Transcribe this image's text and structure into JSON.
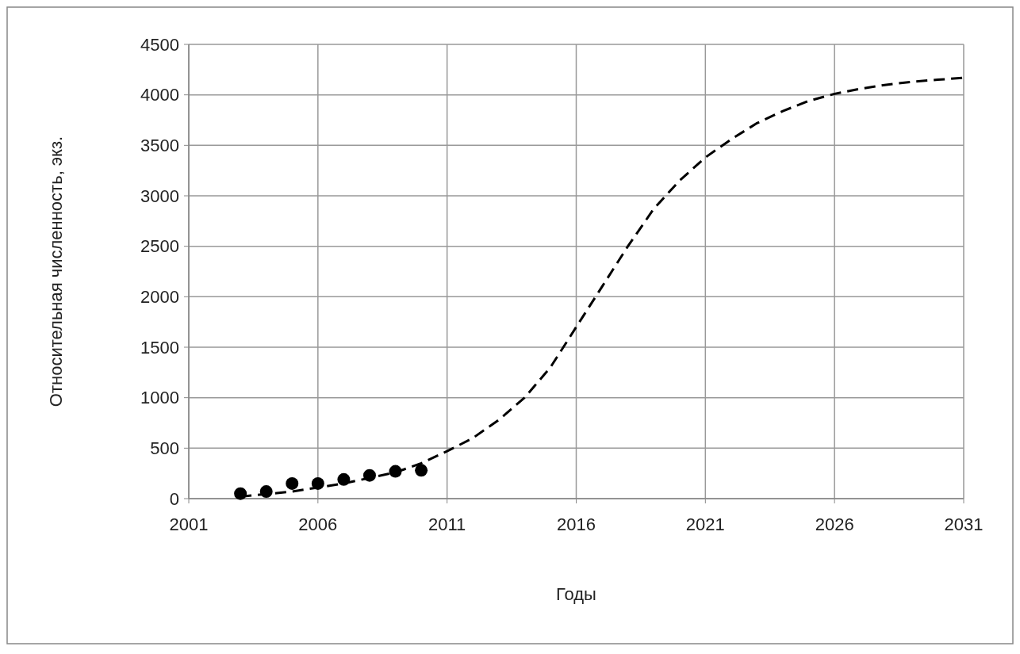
{
  "chart_data": {
    "type": "scatter",
    "xlabel": "Годы",
    "ylabel": "Относительная численность, экз.",
    "xlim": [
      2001,
      2031
    ],
    "xticks": [
      2001,
      2006,
      2011,
      2016,
      2021,
      2026,
      2031
    ],
    "ylim": [
      0,
      4500
    ],
    "yticks": [
      0,
      500,
      1000,
      1500,
      2000,
      2500,
      3000,
      3500,
      4000,
      4500
    ],
    "grid": true,
    "series": [
      {
        "color": "#000000",
        "marker": "circle",
        "x": [
          2003,
          2004,
          2005,
          2006,
          2007,
          2008,
          2009,
          2010
        ],
        "values": [
          50,
          70,
          150,
          150,
          190,
          230,
          270,
          280
        ]
      },
      {
        "type": "line",
        "color": "#000000",
        "line_style": "dashed",
        "marker": "none",
        "x": [
          2003,
          2005,
          2007,
          2009,
          2010,
          2011,
          2012,
          2013,
          2014,
          2015,
          2016,
          2017,
          2018,
          2019,
          2020,
          2021,
          2022,
          2023,
          2024,
          2025,
          2026,
          2027,
          2028,
          2029,
          2030,
          2031
        ],
        "values": [
          20,
          70,
          150,
          260,
          350,
          470,
          600,
          780,
          1000,
          1300,
          1700,
          2100,
          2500,
          2870,
          3150,
          3380,
          3560,
          3720,
          3840,
          3940,
          4010,
          4060,
          4100,
          4130,
          4150,
          4170
        ]
      }
    ]
  }
}
